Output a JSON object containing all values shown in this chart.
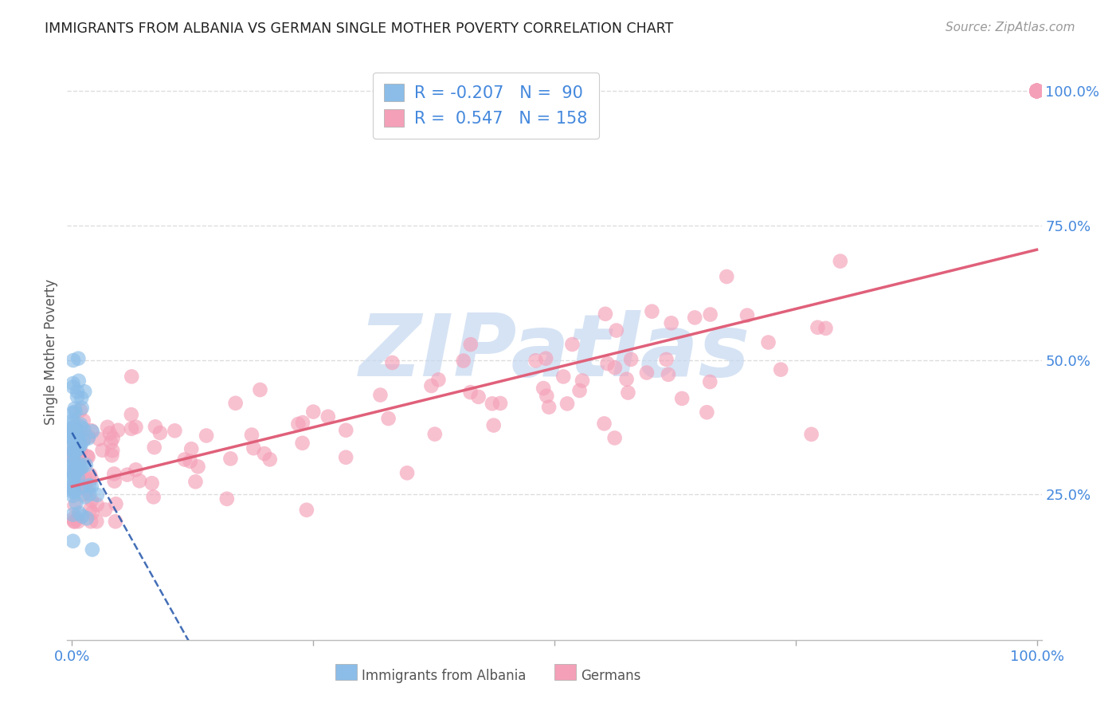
{
  "title": "IMMIGRANTS FROM ALBANIA VS GERMAN SINGLE MOTHER POVERTY CORRELATION CHART",
  "source": "Source: ZipAtlas.com",
  "ylabel": "Single Mother Poverty",
  "legend_blue_r": "-0.207",
  "legend_blue_n": "90",
  "legend_pink_r": "0.547",
  "legend_pink_n": "158",
  "blue_color": "#8BBDE8",
  "pink_color": "#F4A0B8",
  "blue_line_color": "#2255AA",
  "pink_line_color": "#E0607A",
  "watermark_color": "#C5D8F0",
  "background_color": "#FFFFFF",
  "grid_color": "#DDDDDD",
  "title_color": "#222222",
  "axis_label_color": "#4488DD",
  "label_color": "#555555",
  "right_label_color": "#4488DD",
  "blue_seed": 42,
  "pink_seed": 99
}
